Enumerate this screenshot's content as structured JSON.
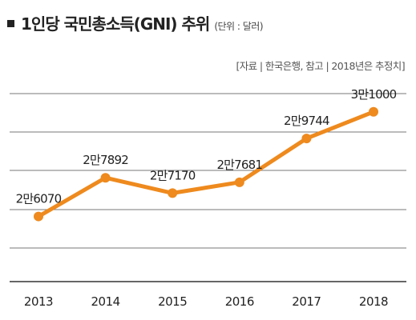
{
  "header": {
    "title": "1인당 국민총소득(GNI) 추위",
    "unit": "(단위 : 달러)",
    "source": "[자료 | 한국은행, 참고 | 2018년은 추정치]"
  },
  "colors": {
    "line": "#EE8A1E",
    "grid": "#777777",
    "baseline": "#333333",
    "text": "#222222"
  },
  "chart_data": {
    "type": "line",
    "title": "1인당 국민총소득(GNI) 추위",
    "categories": [
      "2013",
      "2014",
      "2015",
      "2016",
      "2017",
      "2018"
    ],
    "values": [
      26070,
      27892,
      27170,
      27681,
      29744,
      31000
    ],
    "labels": [
      "2만6070",
      "2만7892",
      "2만7170",
      "2만7681",
      "2만9744",
      "3만1000"
    ],
    "ylim": [
      23000,
      32500
    ],
    "grid": true,
    "legend": "none"
  }
}
